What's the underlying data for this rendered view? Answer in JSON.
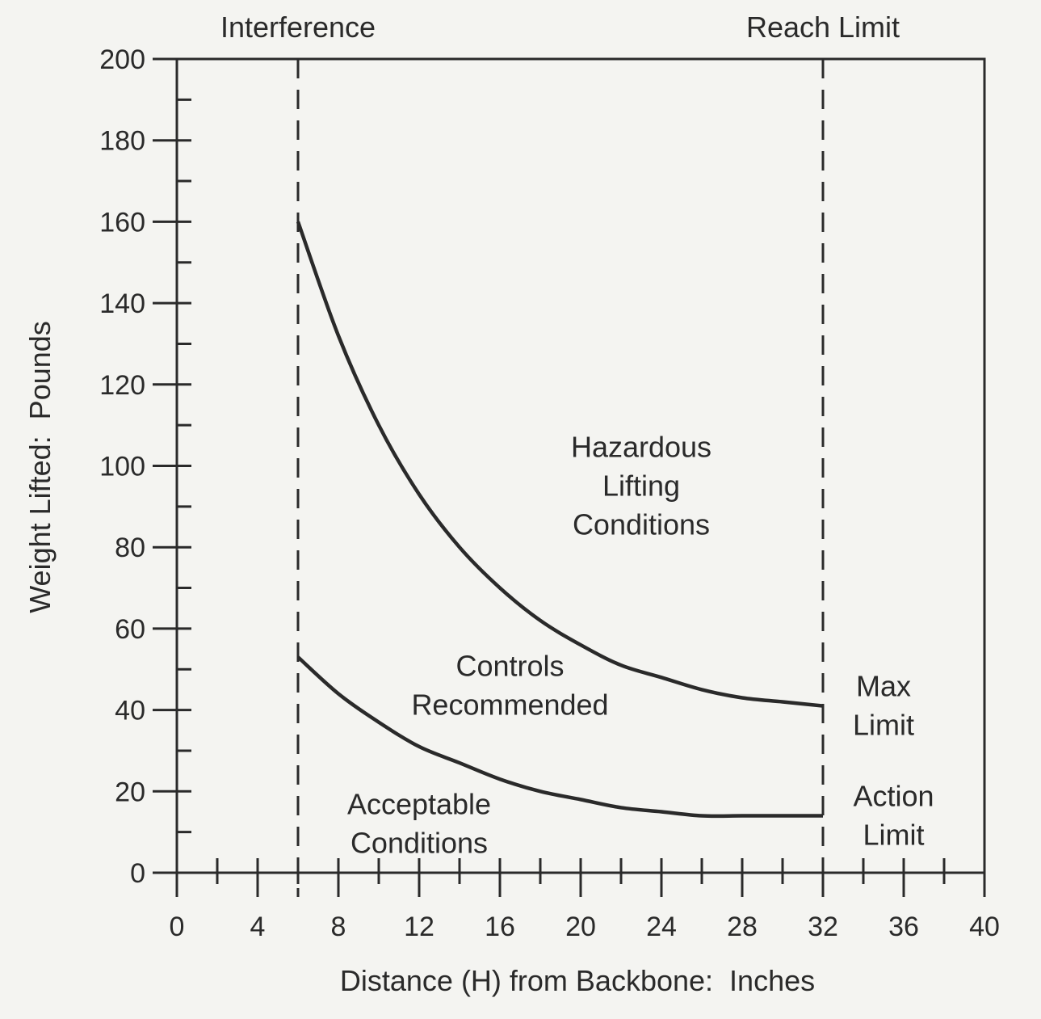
{
  "chart_data": {
    "type": "line",
    "title": "",
    "xlabel": "Distance (H) from Backbone:  Inches",
    "ylabel": "Weight Lifted:  Pounds",
    "xlim": [
      0,
      40
    ],
    "ylim": [
      0,
      200
    ],
    "x_ticks": [
      0,
      4,
      8,
      12,
      16,
      20,
      24,
      28,
      32,
      36,
      40
    ],
    "y_ticks": [
      0,
      20,
      40,
      60,
      80,
      100,
      120,
      140,
      160,
      180,
      200
    ],
    "grid": false,
    "series": [
      {
        "name": "Max Limit",
        "x": [
          6,
          8,
          10,
          12,
          14,
          16,
          18,
          20,
          22,
          24,
          26,
          28,
          30,
          32
        ],
        "y": [
          160,
          132,
          110,
          93,
          80,
          70,
          62,
          56,
          51,
          48,
          45,
          43,
          42,
          41
        ]
      },
      {
        "name": "Action Limit",
        "x": [
          6,
          8,
          10,
          12,
          14,
          16,
          18,
          20,
          22,
          24,
          26,
          28,
          30,
          32
        ],
        "y": [
          53,
          44,
          37,
          31,
          27,
          23,
          20,
          18,
          16,
          15,
          14,
          14,
          14,
          14
        ]
      }
    ],
    "reference_lines": [
      {
        "x": 6,
        "style": "dashed",
        "label": "Interference"
      },
      {
        "x": 32,
        "style": "dashed",
        "label": "Reach  Limit"
      }
    ],
    "annotations": [
      {
        "lines": [
          "Hazardous",
          "Lifting",
          "Conditions"
        ],
        "x": 23,
        "y": 95
      },
      {
        "lines": [
          "Controls",
          "Recommended"
        ],
        "x": 16.5,
        "y": 46
      },
      {
        "lines": [
          "Acceptable",
          "Conditions"
        ],
        "x": 12,
        "y": 12
      },
      {
        "lines": [
          "Max",
          "Limit"
        ],
        "x": 35,
        "y": 41
      },
      {
        "lines": [
          "Action",
          "Limit"
        ],
        "x": 35.5,
        "y": 14
      }
    ],
    "colors": {
      "ink": "#2a2a2a",
      "paper": "#f4f4f1"
    }
  }
}
